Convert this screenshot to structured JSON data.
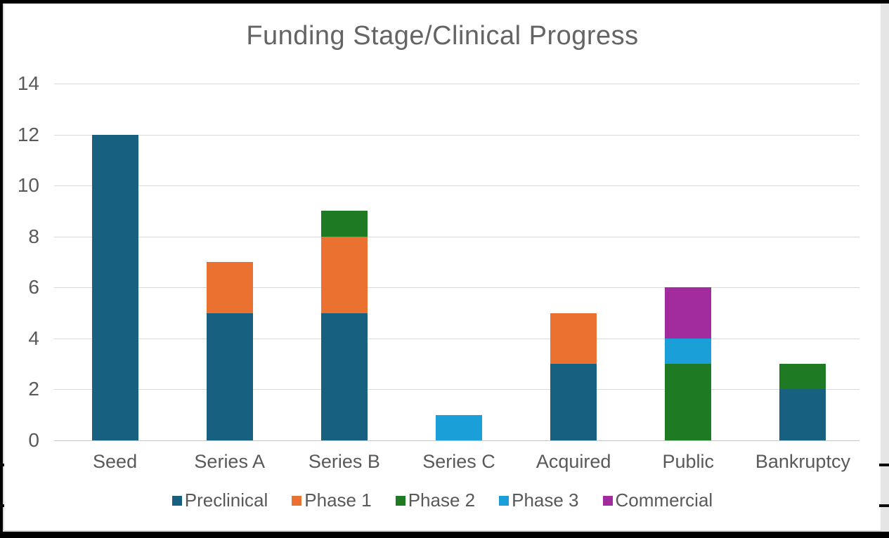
{
  "chart_data": {
    "type": "bar",
    "stacked": true,
    "title": "Funding Stage/Clinical Progress",
    "categories": [
      "Seed",
      "Series A",
      "Series B",
      "Series C",
      "Acquired",
      "Public",
      "Bankruptcy"
    ],
    "series": [
      {
        "name": "Preclinical",
        "color": "#17607F",
        "values": [
          12,
          5,
          5,
          0,
          3,
          0,
          2
        ]
      },
      {
        "name": "Phase 1",
        "color": "#EB7131",
        "values": [
          0,
          2,
          3,
          0,
          2,
          0,
          0
        ]
      },
      {
        "name": "Phase 2",
        "color": "#1E7B23",
        "values": [
          0,
          0,
          1,
          0,
          0,
          3,
          1
        ]
      },
      {
        "name": "Phase 3",
        "color": "#1B9FD8",
        "values": [
          0,
          0,
          0,
          1,
          0,
          1,
          0
        ]
      },
      {
        "name": "Commercial",
        "color": "#A22B9D",
        "values": [
          0,
          0,
          0,
          0,
          0,
          2,
          0
        ]
      }
    ],
    "stack_totals": [
      12,
      7,
      9,
      1,
      5,
      6,
      3
    ],
    "y_ticks": [
      0,
      2,
      4,
      6,
      8,
      10,
      12,
      14
    ],
    "ylim": [
      0,
      14
    ],
    "xlabel": "",
    "ylabel": "",
    "grid": true,
    "legend_position": "bottom",
    "colors": {
      "title_text": "#646464",
      "axis_text": "#595959",
      "gridline": "#d9d9d9",
      "panel_background": "#ffffff",
      "frame_background": "#000000"
    }
  }
}
